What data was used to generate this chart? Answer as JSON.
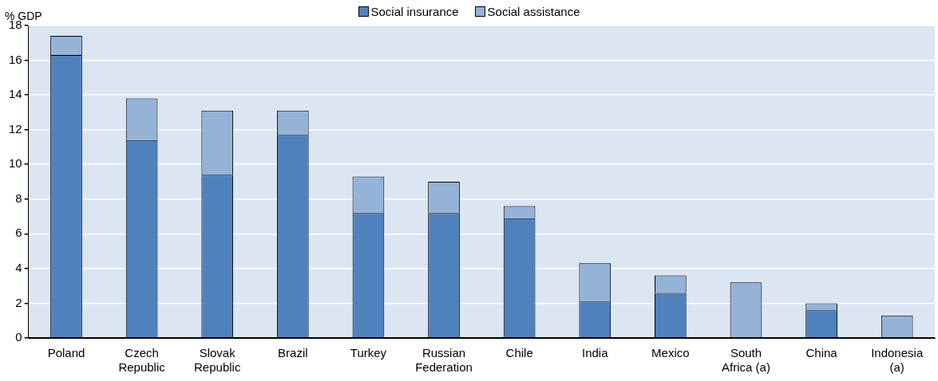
{
  "chart_data": {
    "type": "bar",
    "stacked": true,
    "ylabel": "% GDP",
    "categories": [
      "Poland",
      "Czech Republic",
      "Slovak Republic",
      "Brazil",
      "Turkey",
      "Russian Federation",
      "Chile",
      "India",
      "Mexico",
      "South Africa (a)",
      "China",
      "Indonesia (a)"
    ],
    "series": [
      {
        "name": "Social insurance",
        "color": "#4f81bd",
        "values": [
          16.3,
          11.4,
          9.4,
          11.7,
          7.2,
          7.2,
          6.9,
          2.1,
          2.6,
          0,
          1.6,
          0
        ]
      },
      {
        "name": "Social assistance",
        "color": "#95b3d7",
        "values": [
          1.1,
          2.4,
          3.7,
          1.4,
          2.1,
          1.8,
          0.7,
          2.2,
          1.0,
          3.2,
          0.4,
          1.3
        ]
      }
    ],
    "ylim": [
      0,
      18
    ],
    "yticks": [
      0,
      2,
      4,
      6,
      8,
      10,
      12,
      14,
      16,
      18
    ],
    "grid": "y",
    "legend": "top"
  }
}
